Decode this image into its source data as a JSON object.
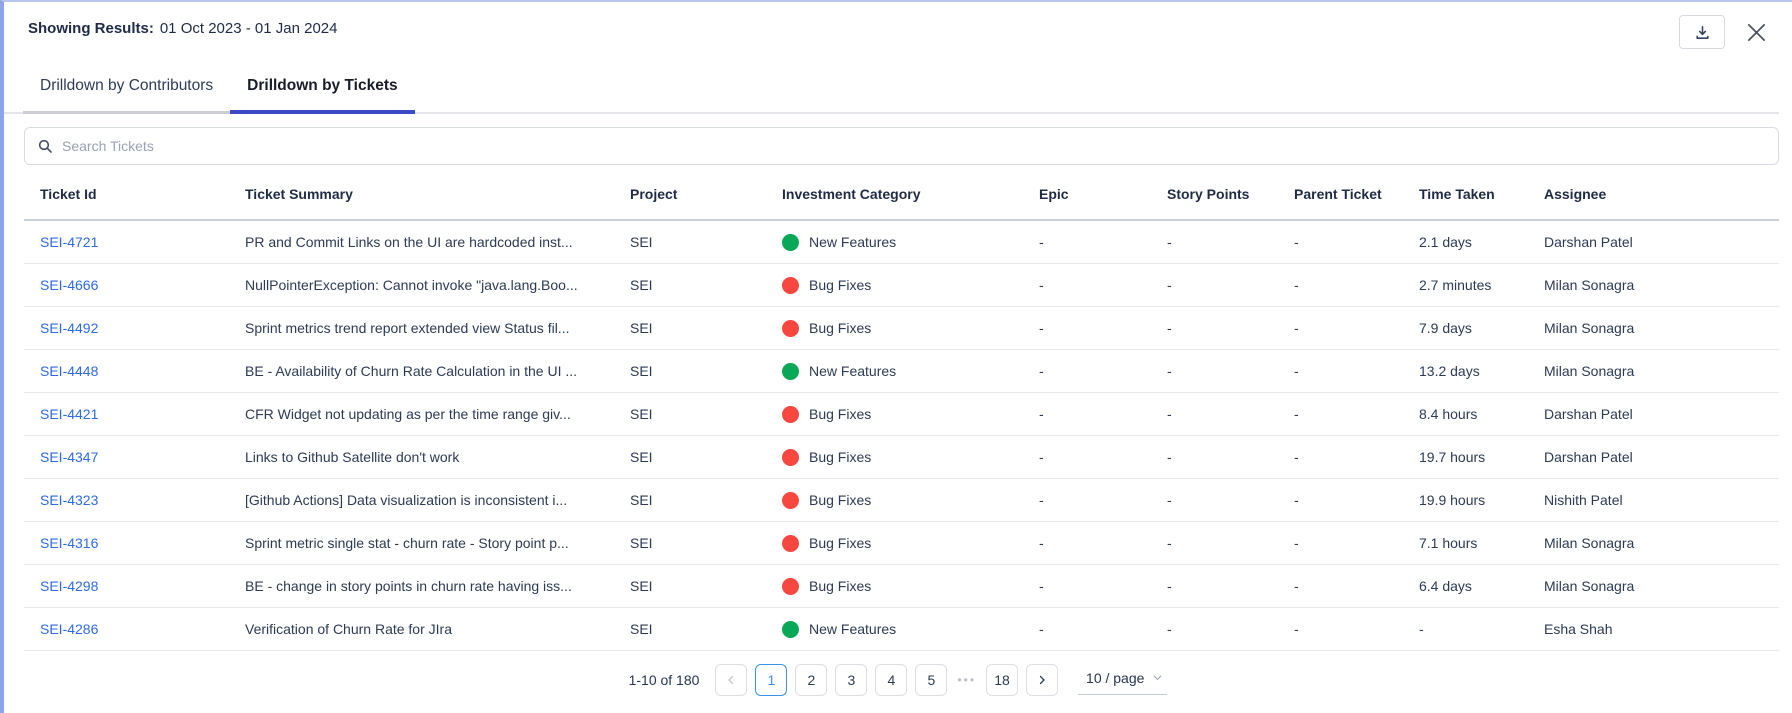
{
  "header": {
    "showing_results_label": "Showing Results:",
    "date_range": "01 Oct 2023 - 01 Jan 2024"
  },
  "tabs": [
    {
      "label": "Drilldown by Contributors",
      "active": false
    },
    {
      "label": "Drilldown by Tickets",
      "active": true
    }
  ],
  "search": {
    "placeholder": "Search Tickets"
  },
  "table": {
    "columns": [
      "Ticket Id",
      "Ticket Summary",
      "Project",
      "Investment Category",
      "Epic",
      "Story Points",
      "Parent Ticket",
      "Time Taken",
      "Assignee"
    ],
    "rows": [
      {
        "ticket_id": "SEI-4721",
        "summary": "PR and Commit Links on the UI are hardcoded inst...",
        "project": "SEI",
        "category": "New Features",
        "category_color": "#09A857",
        "epic": "-",
        "story_points": "-",
        "parent_ticket": "-",
        "time_taken": "2.1 days",
        "assignee": "Darshan Patel"
      },
      {
        "ticket_id": "SEI-4666",
        "summary": "NullPointerException: Cannot invoke \"java.lang.Boo...",
        "project": "SEI",
        "category": "Bug Fixes",
        "category_color": "#F8473F",
        "epic": "-",
        "story_points": "-",
        "parent_ticket": "-",
        "time_taken": "2.7 minutes",
        "assignee": "Milan Sonagra"
      },
      {
        "ticket_id": "SEI-4492",
        "summary": "Sprint metrics trend report extended view Status fil...",
        "project": "SEI",
        "category": "Bug Fixes",
        "category_color": "#F8473F",
        "epic": "-",
        "story_points": "-",
        "parent_ticket": "-",
        "time_taken": "7.9 days",
        "assignee": "Milan Sonagra"
      },
      {
        "ticket_id": "SEI-4448",
        "summary": "BE - Availability of Churn Rate Calculation in the UI ...",
        "project": "SEI",
        "category": "New Features",
        "category_color": "#09A857",
        "epic": "-",
        "story_points": "-",
        "parent_ticket": "-",
        "time_taken": "13.2 days",
        "assignee": "Milan Sonagra"
      },
      {
        "ticket_id": "SEI-4421",
        "summary": "CFR Widget not updating as per the time range giv...",
        "project": "SEI",
        "category": "Bug Fixes",
        "category_color": "#F8473F",
        "epic": "-",
        "story_points": "-",
        "parent_ticket": "-",
        "time_taken": "8.4 hours",
        "assignee": "Darshan Patel"
      },
      {
        "ticket_id": "SEI-4347",
        "summary": "Links to Github Satellite don't work",
        "project": "SEI",
        "category": "Bug Fixes",
        "category_color": "#F8473F",
        "epic": "-",
        "story_points": "-",
        "parent_ticket": "-",
        "time_taken": "19.7 hours",
        "assignee": "Darshan Patel"
      },
      {
        "ticket_id": "SEI-4323",
        "summary": "[Github Actions] Data visualization is inconsistent i...",
        "project": "SEI",
        "category": "Bug Fixes",
        "category_color": "#F8473F",
        "epic": "-",
        "story_points": "-",
        "parent_ticket": "-",
        "time_taken": "19.9 hours",
        "assignee": "Nishith Patel"
      },
      {
        "ticket_id": "SEI-4316",
        "summary": "Sprint metric single stat - churn rate - Story point p...",
        "project": "SEI",
        "category": "Bug Fixes",
        "category_color": "#F8473F",
        "epic": "-",
        "story_points": "-",
        "parent_ticket": "-",
        "time_taken": "7.1 hours",
        "assignee": "Milan Sonagra"
      },
      {
        "ticket_id": "SEI-4298",
        "summary": "BE - change in story points in churn rate having iss...",
        "project": "SEI",
        "category": "Bug Fixes",
        "category_color": "#F8473F",
        "epic": "-",
        "story_points": "-",
        "parent_ticket": "-",
        "time_taken": "6.4 days",
        "assignee": "Milan Sonagra"
      },
      {
        "ticket_id": "SEI-4286",
        "summary": "Verification of Churn Rate for JIra",
        "project": "SEI",
        "category": "New Features",
        "category_color": "#09A857",
        "epic": "-",
        "story_points": "-",
        "parent_ticket": "-",
        "time_taken": "-",
        "assignee": "Esha Shah"
      }
    ]
  },
  "pagination": {
    "range_text": "1-10 of 180",
    "pages": [
      "1",
      "2",
      "3",
      "4",
      "5"
    ],
    "ellipsis_label": "•••",
    "last_page": "18",
    "active_page": "1",
    "page_size_label": "10 / page"
  },
  "colors": {
    "panel_border": "#8ea5ec",
    "tab_ink_bar": "#3c4ac6",
    "link_blue": "#2d6ae2",
    "active_page_blue": "#3e92e4",
    "new_features_green": "#09A857",
    "bug_fixes_red": "#F8473F"
  }
}
